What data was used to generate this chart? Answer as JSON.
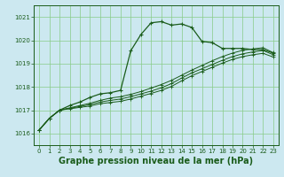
{
  "background_color": "#cce8f0",
  "plot_bg_color": "#cce8f0",
  "grid_color": "#88cc88",
  "line_color": "#1a5c1a",
  "title": "Graphe pression niveau de la mer (hPa)",
  "title_fontsize": 7,
  "ylim": [
    1015.5,
    1021.5
  ],
  "xlim": [
    -0.5,
    23.5
  ],
  "yticks": [
    1016,
    1017,
    1018,
    1019,
    1020,
    1021
  ],
  "xticks": [
    0,
    1,
    2,
    3,
    4,
    5,
    6,
    7,
    8,
    9,
    10,
    11,
    12,
    13,
    14,
    15,
    16,
    17,
    18,
    19,
    20,
    21,
    22,
    23
  ],
  "series1_x": [
    0,
    1,
    2,
    3,
    4,
    5,
    6,
    7,
    8,
    9,
    10,
    11,
    12,
    13,
    14,
    15,
    16,
    17,
    18,
    19,
    20,
    21,
    22,
    23
  ],
  "series1_y": [
    1016.15,
    1016.65,
    1017.0,
    1017.2,
    1017.35,
    1017.55,
    1017.7,
    1017.75,
    1017.85,
    1019.55,
    1020.25,
    1020.75,
    1020.8,
    1020.65,
    1020.7,
    1020.55,
    1019.95,
    1019.9,
    1019.65,
    1019.65,
    1019.65,
    1019.6,
    1019.6,
    1019.45
  ],
  "series2_x": [
    0,
    1,
    2,
    3,
    4,
    5,
    6,
    7,
    8,
    9,
    10,
    11,
    12,
    13,
    14,
    15,
    16,
    17,
    18,
    19,
    20,
    21,
    22,
    23
  ],
  "series2_y": [
    1016.15,
    1016.65,
    1017.0,
    1017.1,
    1017.2,
    1017.3,
    1017.42,
    1017.52,
    1017.58,
    1017.68,
    1017.8,
    1017.95,
    1018.1,
    1018.28,
    1018.5,
    1018.72,
    1018.92,
    1019.12,
    1019.3,
    1019.45,
    1019.57,
    1019.63,
    1019.68,
    1019.47
  ],
  "series3_x": [
    0,
    1,
    2,
    3,
    4,
    5,
    6,
    7,
    8,
    9,
    10,
    11,
    12,
    13,
    14,
    15,
    16,
    17,
    18,
    19,
    20,
    21,
    22,
    23
  ],
  "series3_y": [
    1016.15,
    1016.65,
    1017.0,
    1017.08,
    1017.16,
    1017.24,
    1017.35,
    1017.42,
    1017.48,
    1017.58,
    1017.7,
    1017.82,
    1017.96,
    1018.14,
    1018.38,
    1018.6,
    1018.78,
    1018.96,
    1019.14,
    1019.3,
    1019.42,
    1019.5,
    1019.56,
    1019.38
  ],
  "series4_x": [
    0,
    1,
    2,
    3,
    4,
    5,
    6,
    7,
    8,
    9,
    10,
    11,
    12,
    13,
    14,
    15,
    16,
    17,
    18,
    19,
    20,
    21,
    22,
    23
  ],
  "series4_y": [
    1016.15,
    1016.65,
    1017.0,
    1017.06,
    1017.12,
    1017.18,
    1017.28,
    1017.33,
    1017.38,
    1017.48,
    1017.6,
    1017.72,
    1017.85,
    1018.02,
    1018.26,
    1018.48,
    1018.66,
    1018.84,
    1019.02,
    1019.18,
    1019.3,
    1019.38,
    1019.44,
    1019.28
  ]
}
